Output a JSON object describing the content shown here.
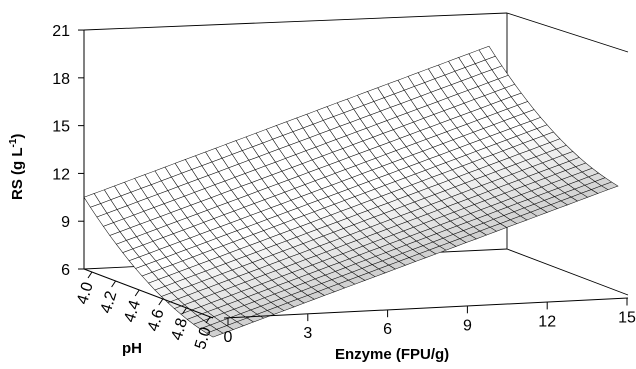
{
  "chart_data": {
    "type": "surface",
    "title": "",
    "zlabel": "RS (g L",
    "zlabel_sup": "-1",
    "zlabel_close": ")",
    "xlabel": "Enzyme (FPU/g)",
    "ylabel": "pH",
    "x_ticks": [
      0,
      3,
      6,
      9,
      12,
      15
    ],
    "y_ticks": [
      "4.0",
      "4.2",
      "4.4",
      "4.6",
      "4.8",
      "5.0"
    ],
    "z_ticks": [
      6,
      9,
      12,
      15,
      18,
      21
    ],
    "xlim": [
      0,
      15
    ],
    "ylim": [
      4.0,
      5.0
    ],
    "zlim": [
      6,
      21
    ],
    "corner_values": {
      "enzyme_0_pH_4.0": 10.5,
      "enzyme_0_pH_5.0": 4.8,
      "enzyme_15_pH_4.0": 19.0,
      "enzyme_15_pH_5.0": 13.3
    },
    "surface_note": "RS increases linearly with enzyme loading and decreases with pH, curving to a minimum near pH 5.0",
    "grid_x": 40,
    "grid_y": 20,
    "shading": [
      "#ffffff",
      "#d8d8d8"
    ]
  }
}
